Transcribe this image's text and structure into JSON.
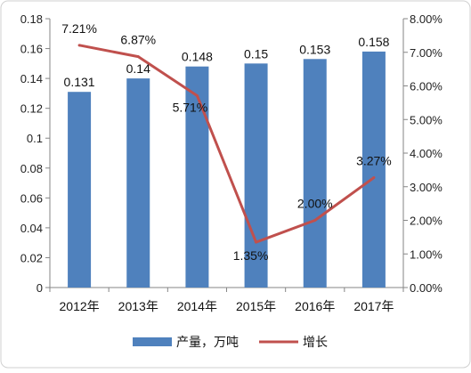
{
  "chart_data": {
    "type": "bar",
    "categories": [
      "2012年",
      "2013年",
      "2014年",
      "2015年",
      "2016年",
      "2017年"
    ],
    "series": [
      {
        "name": "产量，万吨",
        "type": "bar",
        "axis": "left",
        "values": [
          0.131,
          0.14,
          0.148,
          0.15,
          0.153,
          0.158
        ],
        "labels": [
          "0.131",
          "0.14",
          "0.148",
          "0.15",
          "0.153",
          "0.158"
        ],
        "color": "#4f81bd"
      },
      {
        "name": "增长",
        "type": "line",
        "axis": "right",
        "values": [
          7.21,
          6.87,
          5.71,
          1.35,
          2.0,
          3.27
        ],
        "labels": [
          "7.21%",
          "6.87%",
          "5.71%",
          "1.35%",
          "2.00%",
          "3.27%"
        ],
        "color": "#c0504d"
      }
    ],
    "y_left": {
      "range": [
        0,
        0.18
      ],
      "ticks": [
        0,
        0.02,
        0.04,
        0.06,
        0.08,
        0.1,
        0.12,
        0.14,
        0.16,
        0.18
      ],
      "tick_labels": [
        "0",
        "0.02",
        "0.04",
        "0.06",
        "0.08",
        "0.1",
        "0.12",
        "0.14",
        "0.16",
        "0.18"
      ]
    },
    "y_right": {
      "range": [
        0,
        8
      ],
      "ticks": [
        0,
        1,
        2,
        3,
        4,
        5,
        6,
        7,
        8
      ],
      "tick_labels": [
        "0.00%",
        "1.00%",
        "2.00%",
        "3.00%",
        "4.00%",
        "5.00%",
        "6.00%",
        "7.00%",
        "8.00%"
      ]
    },
    "grid": false,
    "legend": "bottom",
    "frame_color": "#d0d0d0"
  }
}
